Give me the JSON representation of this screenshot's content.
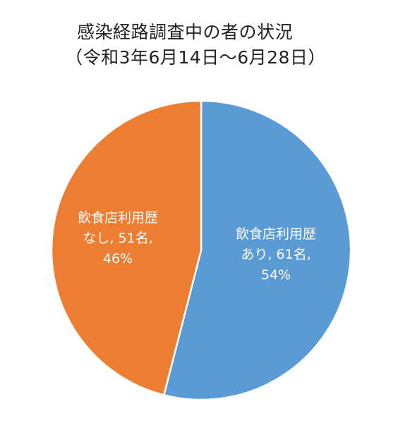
{
  "chart_data": {
    "type": "pie",
    "title_line1": "感染経路調査中の者の状況",
    "title_line2": "（令和3年6月14日～6月28日）",
    "slices": [
      {
        "category": "飲食店利用歴",
        "sub": "あり",
        "count": 61,
        "count_label": "61名,",
        "value": 54,
        "percent_label": "54%",
        "color": "#5B9BD5"
      },
      {
        "category": "飲食店利用歴",
        "sub": "なし",
        "count": 51,
        "count_label": "51名,",
        "value": 46,
        "percent_label": "46%",
        "color": "#ED7D31"
      }
    ]
  }
}
